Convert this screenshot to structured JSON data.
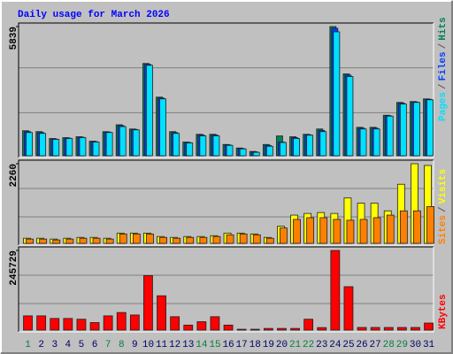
{
  "chart_data": {
    "type": "bar",
    "title": "Daily usage for March 2026",
    "categories": [
      "1",
      "2",
      "3",
      "4",
      "5",
      "6",
      "7",
      "8",
      "9",
      "10",
      "11",
      "12",
      "13",
      "14",
      "15",
      "16",
      "17",
      "18",
      "19",
      "20",
      "21",
      "22",
      "23",
      "24",
      "25",
      "26",
      "27",
      "28",
      "29",
      "30",
      "31"
    ],
    "category_colors": [
      "#008040",
      "#00006b",
      "#00006b",
      "#00006b",
      "#00006b",
      "#00006b",
      "#008040",
      "#008040",
      "#00006b",
      "#00006b",
      "#00006b",
      "#00006b",
      "#00006b",
      "#008040",
      "#008040",
      "#00006b",
      "#00006b",
      "#00006b",
      "#00006b",
      "#00006b",
      "#008040",
      "#008040",
      "#00006b",
      "#00006b",
      "#00006b",
      "#00006b",
      "#00006b",
      "#008040",
      "#008040",
      "#00006b",
      "#00006b"
    ],
    "panels": [
      {
        "ylim": [
          0,
          5839
        ],
        "yticks": [
          5839
        ],
        "legend_separator": "/",
        "series": [
          {
            "name": "Hits",
            "color": "#00805c",
            "values": [
              1130,
              1090,
              780,
              820,
              860,
              660,
              1090,
              1400,
              1210,
              4170,
              2650,
              1090,
              620,
              970,
              970,
              510,
              350,
              195,
              510,
              895,
              860,
              970,
              1210,
              5839,
              3700,
              1285,
              1285,
              1830,
              2410,
              2450,
              2570
            ]
          },
          {
            "name": "Files",
            "color": "#0040ff",
            "values": [
              1090,
              1050,
              760,
              800,
              840,
              640,
              1070,
              1360,
              1190,
              4130,
              2610,
              1050,
              600,
              940,
              940,
              490,
              330,
              175,
              470,
              620,
              820,
              950,
              1150,
              5760,
              3640,
              1250,
              1250,
              1810,
              2380,
              2430,
              2550
            ]
          },
          {
            "name": "Pages",
            "color": "#00e0ff",
            "values": [
              1050,
              1010,
              740,
              780,
              820,
              620,
              1050,
              1320,
              1170,
              4090,
              2570,
              1010,
              580,
              900,
              900,
              470,
              310,
              155,
              430,
              600,
              780,
              930,
              1090,
              5600,
              3580,
              1210,
              1210,
              1790,
              2340,
              2410,
              2530
            ]
          }
        ]
      },
      {
        "ylim": [
          0,
          2260
        ],
        "yticks": [
          2260
        ],
        "legend_separator": "/",
        "series": [
          {
            "name": "Visits",
            "color": "#ffff00",
            "values": [
              146,
              146,
              122,
              146,
              170,
              170,
              146,
              292,
              292,
              292,
              195,
              170,
              195,
              195,
              219,
              292,
              292,
              268,
              170,
              486,
              802,
              850,
              875,
              850,
              1288,
              1142,
              1142,
              923,
              1677,
              2260,
              2211
            ]
          },
          {
            "name": "Sites",
            "color": "#ff8000",
            "values": [
              122,
              122,
              97,
              122,
              146,
              146,
              122,
              267,
              267,
              267,
              170,
              146,
              170,
              170,
              195,
              243,
              267,
              243,
              146,
              437,
              680,
              729,
              729,
              680,
              656,
              680,
              729,
              802,
              923,
              923,
              1045
            ]
          }
        ]
      },
      {
        "ylim": [
          0,
          245729
        ],
        "yticks": [
          245729
        ],
        "series": [
          {
            "name": "KBytes",
            "color": "#ff0000",
            "values": [
              44000,
              44000,
              36000,
              36000,
              33600,
              23300,
              44000,
              54300,
              46600,
              168000,
              106000,
              41400,
              15500,
              25900,
              41400,
              15500,
              2600,
              2600,
              5200,
              5200,
              5200,
              33600,
              7800,
              245729,
              134000,
              8200,
              8200,
              8200,
              8200,
              8200,
              21800
            ]
          }
        ]
      }
    ]
  }
}
